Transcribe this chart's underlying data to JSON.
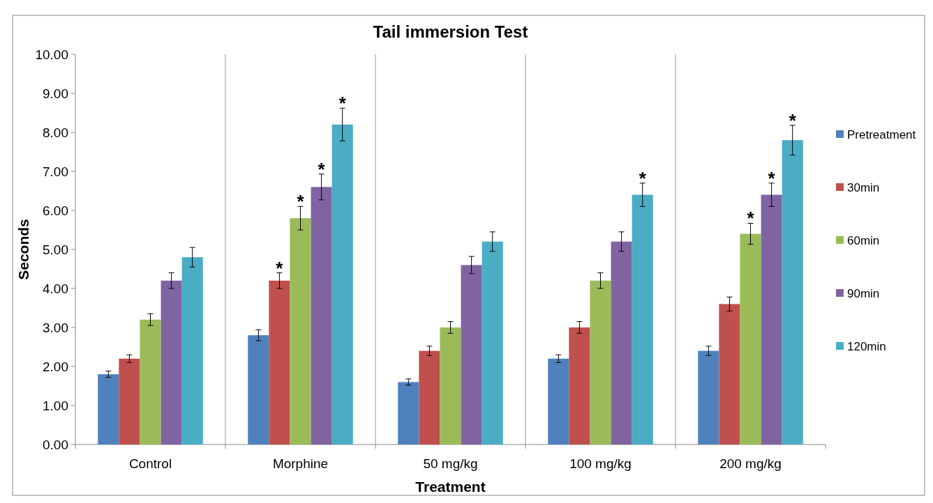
{
  "chart_data": {
    "type": "bar",
    "title": "Tail immersion Test",
    "xlabel": "Treatment",
    "ylabel": "Seconds",
    "categories": [
      "Control",
      "Morphine",
      "50 mg/kg",
      "100 mg/kg",
      "200 mg/kg"
    ],
    "series": [
      {
        "name": "Pretreatment",
        "color": "#4f81bd",
        "values": [
          1.8,
          2.8,
          1.6,
          2.2,
          2.4
        ],
        "errors": [
          0.08,
          0.14,
          0.08,
          0.1,
          0.12
        ]
      },
      {
        "name": "30min",
        "color": "#c0504d",
        "values": [
          2.2,
          4.2,
          2.4,
          3.0,
          3.6
        ],
        "errors": [
          0.1,
          0.2,
          0.12,
          0.15,
          0.18
        ],
        "value_labels": [
          null,
          "*",
          null,
          null,
          null
        ]
      },
      {
        "name": "60min",
        "color": "#9bbb59",
        "values": [
          3.2,
          5.8,
          3.0,
          4.2,
          5.4
        ],
        "errors": [
          0.15,
          0.3,
          0.15,
          0.2,
          0.27
        ],
        "value_labels": [
          null,
          "*",
          null,
          null,
          "*"
        ]
      },
      {
        "name": "90min",
        "color": "#8064a2",
        "values": [
          4.2,
          6.6,
          4.6,
          5.2,
          6.4
        ],
        "errors": [
          0.2,
          0.33,
          0.22,
          0.25,
          0.3
        ],
        "value_labels": [
          null,
          "*",
          null,
          null,
          "*"
        ]
      },
      {
        "name": "120min",
        "color": "#4bacc6",
        "values": [
          4.8,
          8.2,
          5.2,
          6.4,
          7.8
        ],
        "errors": [
          0.25,
          0.42,
          0.25,
          0.3,
          0.38
        ],
        "value_labels": [
          null,
          "*",
          null,
          "*",
          "*"
        ]
      }
    ],
    "ylim": [
      0,
      10
    ],
    "yticks": [
      {
        "value": 0,
        "label": "0.00"
      },
      {
        "value": 1,
        "label": "1.00"
      },
      {
        "value": 2,
        "label": "2.00"
      },
      {
        "value": 3,
        "label": "3.00"
      },
      {
        "value": 4,
        "label": "4.00"
      },
      {
        "value": 5,
        "label": "5.00"
      },
      {
        "value": 6,
        "label": "6.00"
      },
      {
        "value": 7,
        "label": "7.00"
      },
      {
        "value": 8,
        "label": "8.00"
      },
      {
        "value": 9,
        "label": "9.00"
      },
      {
        "value": 10,
        "label": "10.00"
      }
    ],
    "grid": "x",
    "legend": "right"
  }
}
